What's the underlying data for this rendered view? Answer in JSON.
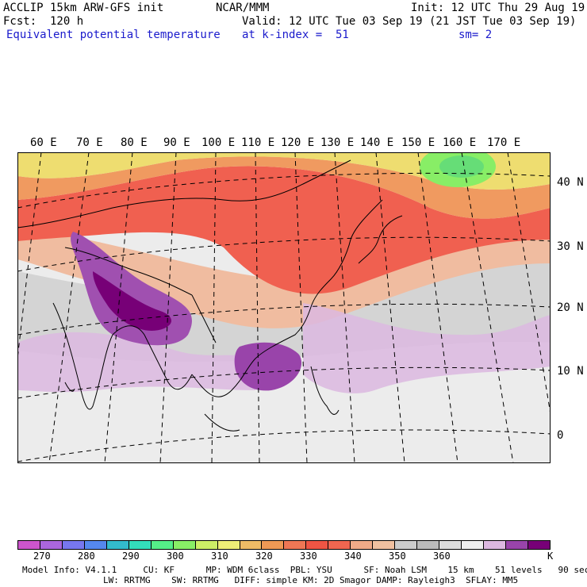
{
  "header": {
    "model": "ACCLIP 15km ARW-GFS init",
    "org": "NCAR/MMM",
    "init": "Init: 12 UTC Thu 29 Aug 19",
    "fcst": "Fcst:  120 h",
    "valid": "Valid: 12 UTC Tue 03 Sep 19 (21 JST Tue 03 Sep 19)",
    "field": "Equivalent potential temperature",
    "level": "at k-index =  51",
    "smooth": "sm= 2"
  },
  "map": {
    "lon_labels": [
      "60 E",
      "70 E",
      "80 E",
      "90 E",
      "100 E",
      "110 E",
      "120 E",
      "130 E",
      "140 E",
      "150 E",
      "160 E",
      "170 E"
    ],
    "lat_labels": [
      "40 N",
      "30 N",
      "20 N",
      "10 N",
      "0"
    ]
  },
  "colorbar": {
    "unit": "K",
    "ticks": [
      "270",
      "280",
      "290",
      "300",
      "310",
      "320",
      "330",
      "340",
      "350",
      "360"
    ],
    "colors": [
      "#cc55cc",
      "#aa66dd",
      "#7777ee",
      "#5588ee",
      "#33bbcc",
      "#33ddbb",
      "#55ee88",
      "#88ee66",
      "#ccee66",
      "#eeee77",
      "#eebb66",
      "#ee9955",
      "#ee7755",
      "#ee5544",
      "#f06650",
      "#f0aa88",
      "#f0c0a0",
      "#cccccc",
      "#bbbbbb",
      "#dddddd",
      "#eeeeee",
      "#dcb8e0",
      "#9944aa",
      "#770077"
    ]
  },
  "footer": {
    "line1": "Model Info: V4.1.1     CU: KF      MP: WDM 6class  PBL: YSU      SF: Noah LSM    15 km    51 levels   90 sec",
    "line2": "LW: RRTMG    SW: RRTMG   DIFF: simple KM: 2D Smagor DAMP: Rayleigh3  SFLAY: MM5"
  }
}
